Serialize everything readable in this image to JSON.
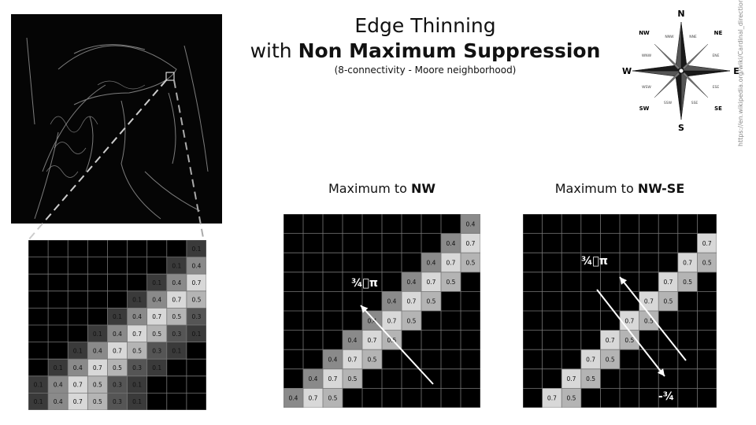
{
  "title_line1": "Edge Thinning",
  "title_line2_prefix": "with ",
  "title_line2_bold": "Non Maximum Suppression",
  "subtitle": "(8-connectivity - Moore neighborhood)",
  "source_url": "https://en.wikipedia.org/wiki/Cardinal_direction",
  "compass": {
    "main": [
      "N",
      "E",
      "S",
      "W"
    ],
    "inter": [
      "NE",
      "SE",
      "SW",
      "NW"
    ],
    "minor": [
      "NNE",
      "ENE",
      "ESE",
      "SSE",
      "SSW",
      "WSW",
      "WNW",
      "NNW"
    ]
  },
  "grid_left": {
    "rows": [
      [
        "",
        "",
        "",
        "",
        "",
        "",
        "",
        "",
        "0.1"
      ],
      [
        "",
        "",
        "",
        "",
        "",
        "",
        "",
        "0.1",
        "0.4"
      ],
      [
        "",
        "",
        "",
        "",
        "",
        "",
        "0.1",
        "0.4",
        "0.7"
      ],
      [
        "",
        "",
        "",
        "",
        "",
        "0.1",
        "0.4",
        "0.7",
        "0.5"
      ],
      [
        "",
        "",
        "",
        "",
        "0.1",
        "0.4",
        "0.7",
        "0.5",
        "0.3"
      ],
      [
        "",
        "",
        "",
        "0.1",
        "0.4",
        "0.7",
        "0.5",
        "0.3",
        "0.1"
      ],
      [
        "",
        "",
        "0.1",
        "0.4",
        "0.7",
        "0.5",
        "0.3",
        "0.1",
        ""
      ],
      [
        "",
        "0.1",
        "0.4",
        "0.7",
        "0.5",
        "0.3",
        "0.1",
        "",
        ""
      ],
      [
        "0.1",
        "0.4",
        "0.7",
        "0.5",
        "0.3",
        "0.1",
        "",
        "",
        ""
      ],
      [
        "0.1",
        "0.4",
        "0.7",
        "0.5",
        "0.3",
        "0.1",
        "",
        "",
        ""
      ]
    ]
  },
  "grid_nw": {
    "label_prefix": "Maximum to ",
    "label_bold": "NW",
    "angle_label": "¾⃞π",
    "rows": [
      [
        "",
        "",
        "",
        "",
        "",
        "",
        "",
        "",
        "",
        "0.4"
      ],
      [
        "",
        "",
        "",
        "",
        "",
        "",
        "",
        "",
        "0.4",
        "0.7"
      ],
      [
        "",
        "",
        "",
        "",
        "",
        "",
        "",
        "0.4",
        "0.7",
        "0.5"
      ],
      [
        "",
        "",
        "",
        "",
        "",
        "",
        "0.4",
        "0.7",
        "0.5",
        ""
      ],
      [
        "",
        "",
        "",
        "",
        "",
        "0.4",
        "0.7",
        "0.5",
        "",
        ""
      ],
      [
        "",
        "",
        "",
        "",
        "0.4",
        "0.7",
        "0.5",
        "",
        "",
        ""
      ],
      [
        "",
        "",
        "",
        "0.4",
        "0.7",
        "0.5",
        "",
        "",
        "",
        ""
      ],
      [
        "",
        "",
        "0.4",
        "0.7",
        "0.5",
        "",
        "",
        "",
        "",
        ""
      ],
      [
        "",
        "0.4",
        "0.7",
        "0.5",
        "",
        "",
        "",
        "",
        "",
        ""
      ],
      [
        "0.4",
        "0.7",
        "0.5",
        "",
        "",
        "",
        "",
        "",
        "",
        ""
      ]
    ]
  },
  "grid_nwse": {
    "label_prefix": "Maximum to ",
    "label_bold": "NW-SE",
    "angle_label_top": "¾⃞π",
    "angle_label_bottom": "-¾",
    "rows": [
      [
        "",
        "",
        "",
        "",
        "",
        "",
        "",
        "",
        "",
        ""
      ],
      [
        "",
        "",
        "",
        "",
        "",
        "",
        "",
        "",
        "",
        "0.7"
      ],
      [
        "",
        "",
        "",
        "",
        "",
        "",
        "",
        "",
        "0.7",
        "0.5"
      ],
      [
        "",
        "",
        "",
        "",
        "",
        "",
        "",
        "0.7",
        "0.5",
        ""
      ],
      [
        "",
        "",
        "",
        "",
        "",
        "",
        "0.7",
        "0.5",
        "",
        ""
      ],
      [
        "",
        "",
        "",
        "",
        "",
        "0.7",
        "0.5",
        "",
        "",
        ""
      ],
      [
        "",
        "",
        "",
        "",
        "0.7",
        "0.5",
        "",
        "",
        "",
        ""
      ],
      [
        "",
        "",
        "",
        "0.7",
        "0.5",
        "",
        "",
        "",
        "",
        ""
      ],
      [
        "",
        "",
        "0.7",
        "0.5",
        "",
        "",
        "",
        "",
        "",
        ""
      ],
      [
        "",
        "0.7",
        "0.5",
        "",
        "",
        "",
        "",
        "",
        "",
        ""
      ]
    ]
  },
  "colors": {
    "grid_bg": "#000000",
    "grid_line": "#777777",
    "arrow": "#ffffff",
    "v0.1": "#3a3a3a",
    "v0.3": "#555555",
    "v0.4": "#8a8a8a",
    "v0.5": "#b4b4b4",
    "v0.7": "#d8d8d8"
  }
}
